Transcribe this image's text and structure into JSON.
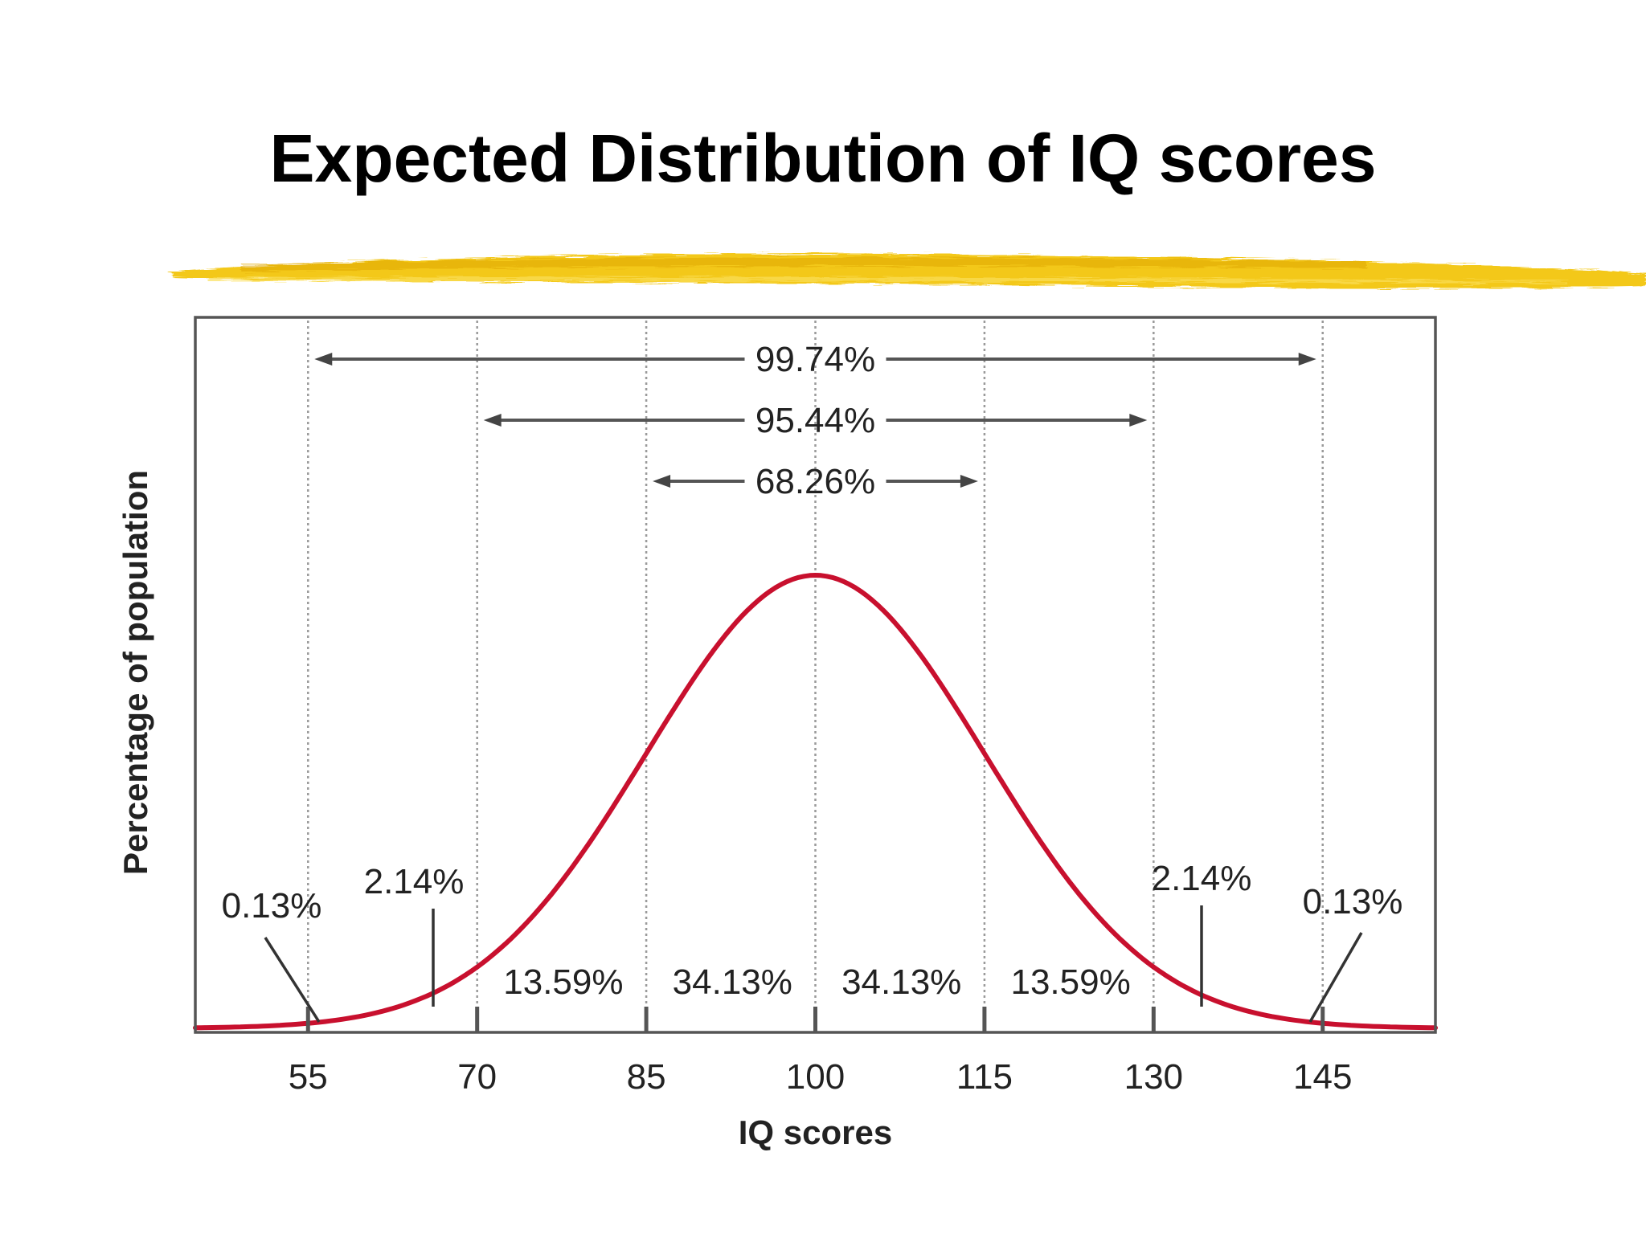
{
  "slide": {
    "title": "Expected Distribution of IQ scores"
  },
  "colors": {
    "curve": "#c8102e",
    "highlight": "#f2c200",
    "frame": "#555555",
    "gridline": "#9a9a9a",
    "text": "#222222"
  },
  "chart_data": {
    "type": "line",
    "title": "",
    "xlabel": "IQ scores",
    "ylabel": "Percentage of population",
    "distribution": "normal",
    "mean": 100,
    "sd": 15,
    "xlim": [
      45,
      155
    ],
    "x_ticks": [
      55,
      70,
      85,
      100,
      115,
      130,
      145
    ],
    "x_tick_labels": [
      "55",
      "70",
      "85",
      "100",
      "115",
      "130",
      "145"
    ],
    "y_tick_labels": [],
    "grid": "vertical dotted lines at each x tick",
    "legend": "none",
    "band_percentages": [
      {
        "from": 70,
        "to": 85,
        "label": "13.59%"
      },
      {
        "from": 85,
        "to": 100,
        "label": "34.13%"
      },
      {
        "from": 100,
        "to": 115,
        "label": "34.13%"
      },
      {
        "from": 115,
        "to": 130,
        "label": "13.59%"
      }
    ],
    "tail_labels": [
      {
        "label": "2.14%",
        "region": "55 to 70",
        "pointer_x": 62.5
      },
      {
        "label": "0.13%",
        "region": "below 55",
        "pointer_x": 53
      },
      {
        "label": "2.14%",
        "region": "130 to 145",
        "pointer_x": 137.5
      },
      {
        "label": "0.13%",
        "region": "above 145",
        "pointer_x": 147
      }
    ],
    "ranges": [
      {
        "from": 55,
        "to": 145,
        "label": "99.74%"
      },
      {
        "from": 70,
        "to": 130,
        "label": "95.44%"
      },
      {
        "from": 85,
        "to": 115,
        "label": "68.26%"
      }
    ]
  }
}
